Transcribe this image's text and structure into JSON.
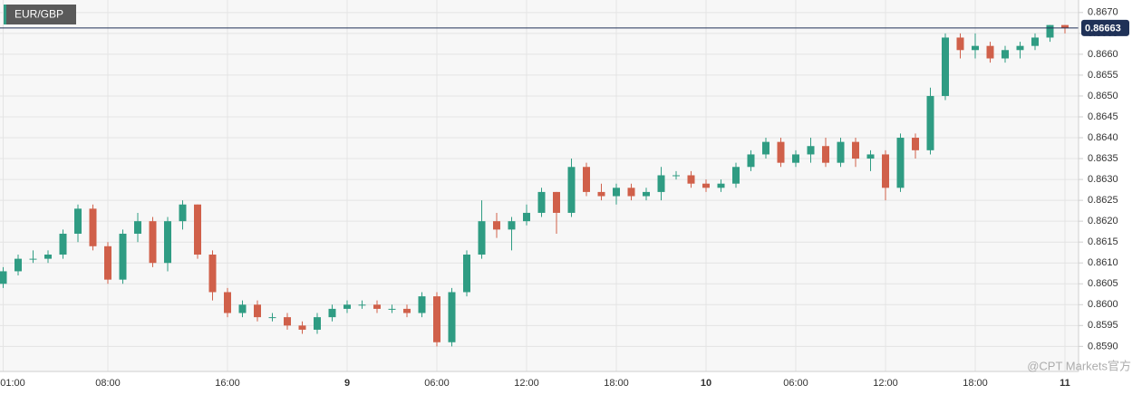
{
  "chart_data": {
    "type": "candlestick",
    "title": "EUR/GBP",
    "watermark": "@CPT Markets官方",
    "categories": [
      "01:00",
      null,
      null,
      null,
      null,
      null,
      null,
      "08:00",
      null,
      null,
      null,
      null,
      null,
      null,
      null,
      "16:00",
      null,
      null,
      null,
      null,
      null,
      null,
      null,
      "9",
      null,
      null,
      null,
      null,
      null,
      "06:00",
      null,
      null,
      null,
      null,
      null,
      "12:00",
      null,
      null,
      null,
      null,
      null,
      "18:00",
      null,
      null,
      null,
      null,
      null,
      "10",
      null,
      null,
      null,
      null,
      null,
      "06:00",
      null,
      null,
      null,
      null,
      null,
      "12:00",
      null,
      null,
      null,
      null,
      null,
      "18:00",
      null,
      null,
      null,
      null,
      null,
      "11"
    ],
    "open": [
      0.8605,
      0.8608,
      0.8611,
      0.8611,
      0.8612,
      0.8617,
      0.8623,
      0.8614,
      0.8606,
      0.8617,
      0.862,
      0.861,
      0.862,
      0.8624,
      0.8612,
      0.8603,
      0.8598,
      0.86,
      0.8597,
      0.8597,
      0.8595,
      0.8594,
      0.8597,
      0.8599,
      0.86,
      0.86,
      0.8599,
      0.8599,
      0.8598,
      0.8602,
      0.8591,
      0.8603,
      0.8612,
      0.862,
      0.8618,
      0.862,
      0.8622,
      0.8627,
      0.8622,
      0.8633,
      0.8627,
      0.8626,
      0.8628,
      0.8626,
      0.8627,
      0.8631,
      0.8631,
      0.8629,
      0.8628,
      0.8629,
      0.8633,
      0.8636,
      0.8639,
      0.8634,
      0.8636,
      0.8638,
      0.8634,
      0.8639,
      0.8635,
      0.8636,
      0.8628,
      0.864,
      0.8637,
      0.865,
      0.8664,
      0.8661,
      0.8662,
      0.8659,
      0.8661,
      0.8662,
      0.8664,
      0.8667
    ],
    "high": [
      0.8609,
      0.8612,
      0.8613,
      0.8613,
      0.8618,
      0.8624,
      0.8624,
      0.8615,
      0.8618,
      0.8622,
      0.8621,
      0.8621,
      0.8625,
      0.8624,
      0.8613,
      0.8604,
      0.8601,
      0.8601,
      0.8598,
      0.8598,
      0.8596,
      0.8598,
      0.86,
      0.8601,
      0.8601,
      0.8601,
      0.86,
      0.86,
      0.8603,
      0.8603,
      0.8604,
      0.8613,
      0.8625,
      0.8622,
      0.8621,
      0.8624,
      0.8628,
      0.8627,
      0.8635,
      0.8634,
      0.8629,
      0.8629,
      0.8629,
      0.8628,
      0.8633,
      0.8632,
      0.8632,
      0.863,
      0.863,
      0.8634,
      0.8637,
      0.864,
      0.864,
      0.8637,
      0.864,
      0.864,
      0.864,
      0.864,
      0.8637,
      0.8637,
      0.8641,
      0.8641,
      0.8652,
      0.8665,
      0.8665,
      0.8665,
      0.8663,
      0.8662,
      0.8663,
      0.8665,
      0.8667,
      0.8667
    ],
    "low": [
      0.8604,
      0.8607,
      0.861,
      0.861,
      0.8611,
      0.8615,
      0.8613,
      0.8605,
      0.8605,
      0.8615,
      0.8609,
      0.8608,
      0.8618,
      0.8611,
      0.8601,
      0.8597,
      0.8597,
      0.8596,
      0.8596,
      0.8594,
      0.8593,
      0.8593,
      0.8596,
      0.8598,
      0.8599,
      0.8598,
      0.8598,
      0.8597,
      0.8597,
      0.859,
      0.859,
      0.8602,
      0.8611,
      0.8616,
      0.8613,
      0.8619,
      0.8621,
      0.8617,
      0.8621,
      0.8626,
      0.8625,
      0.8624,
      0.8625,
      0.8625,
      0.8625,
      0.863,
      0.8628,
      0.8627,
      0.8627,
      0.8628,
      0.8632,
      0.8635,
      0.8633,
      0.8633,
      0.8634,
      0.8633,
      0.8633,
      0.8633,
      0.8632,
      0.8625,
      0.8627,
      0.8635,
      0.8636,
      0.8649,
      0.8659,
      0.8659,
      0.8658,
      0.8658,
      0.8659,
      0.8661,
      0.8663,
      0.8665
    ],
    "close": [
      0.8608,
      0.8611,
      0.8611,
      0.8612,
      0.8617,
      0.8623,
      0.8614,
      0.8606,
      0.8617,
      0.862,
      0.861,
      0.862,
      0.8624,
      0.8612,
      0.8603,
      0.8598,
      0.86,
      0.8597,
      0.8597,
      0.8595,
      0.8594,
      0.8597,
      0.8599,
      0.86,
      0.86,
      0.8599,
      0.8599,
      0.8598,
      0.8602,
      0.8591,
      0.8603,
      0.8612,
      0.862,
      0.8618,
      0.862,
      0.8622,
      0.8627,
      0.8622,
      0.8633,
      0.8627,
      0.8626,
      0.8628,
      0.8626,
      0.8627,
      0.8631,
      0.8631,
      0.8629,
      0.8628,
      0.8629,
      0.8633,
      0.8636,
      0.8639,
      0.8634,
      0.8636,
      0.8638,
      0.8634,
      0.8639,
      0.8635,
      0.8636,
      0.8628,
      0.864,
      0.8637,
      0.865,
      0.8664,
      0.8661,
      0.8662,
      0.8659,
      0.8661,
      0.8662,
      0.8664,
      0.8667,
      0.86663
    ],
    "colors": {
      "up": "#2f9c83",
      "down": "#d0604a"
    },
    "last_price": 0.86663,
    "last_price_color": "#1f3157",
    "ylim": [
      0.8584,
      0.8673
    ],
    "yticks": [
      {
        "value": 0.859,
        "label": "0.8590"
      },
      0.8595,
      {
        "value": 0.86,
        "label": "0.8600"
      },
      0.8605,
      {
        "value": 0.861,
        "label": "0.8610"
      },
      0.8615,
      {
        "value": 0.862,
        "label": "0.8620"
      },
      0.8625,
      {
        "value": 0.863,
        "label": "0.8630"
      },
      0.8635,
      {
        "value": 0.864,
        "label": "0.8640"
      },
      0.8645,
      {
        "value": 0.865,
        "label": "0.8650"
      },
      0.8655,
      {
        "value": 0.866,
        "label": "0.8660"
      },
      0.8665,
      {
        "value": 0.867,
        "label": "0.8670"
      }
    ],
    "grid": true
  }
}
